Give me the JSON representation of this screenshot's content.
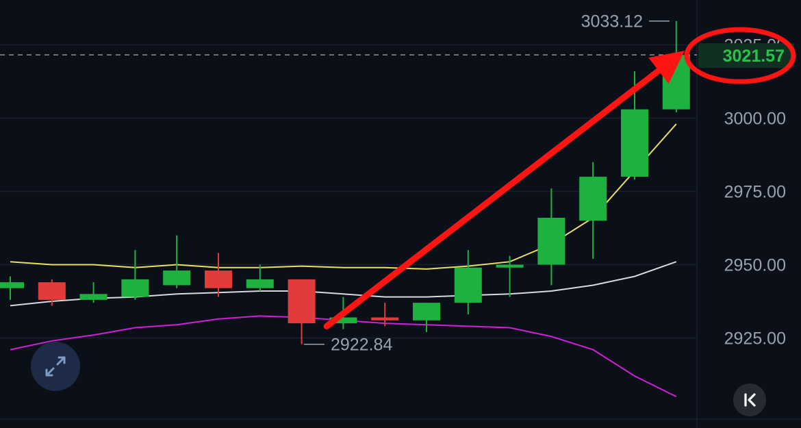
{
  "chart_data": {
    "type": "candlestick",
    "y_axis": {
      "ticks": [
        "3025.00",
        "3000.00",
        "2975.00",
        "2950.00",
        "2925.00"
      ],
      "tick_values": [
        3025,
        3000,
        2975,
        2950,
        2925
      ],
      "range": [
        2903,
        3037
      ],
      "side": "right"
    },
    "current_price": {
      "label": "3021.57",
      "value": 3021.57,
      "color": "#27c24c"
    },
    "high_annotation": {
      "label": "3033.12",
      "value": 3033.12,
      "candle_index": 16
    },
    "low_annotation": {
      "label": "2922.84",
      "value": 2922.84,
      "candle_index": 7
    },
    "candles": [
      {
        "open": 2942,
        "high": 2946,
        "low": 2938,
        "close": 2944
      },
      {
        "open": 2944,
        "high": 2945,
        "low": 2936,
        "close": 2938
      },
      {
        "open": 2938,
        "high": 2944,
        "low": 2937,
        "close": 2940
      },
      {
        "open": 2939,
        "high": 2955,
        "low": 2938,
        "close": 2945
      },
      {
        "open": 2943,
        "high": 2960,
        "low": 2942,
        "close": 2948
      },
      {
        "open": 2948,
        "high": 2954,
        "low": 2939,
        "close": 2942
      },
      {
        "open": 2942,
        "high": 2950,
        "low": 2941,
        "close": 2945
      },
      {
        "open": 2945,
        "high": 2945,
        "low": 2922.84,
        "close": 2930
      },
      {
        "open": 2930,
        "high": 2939,
        "low": 2928,
        "close": 2932
      },
      {
        "open": 2932,
        "high": 2937,
        "low": 2929,
        "close": 2931
      },
      {
        "open": 2931,
        "high": 2937,
        "low": 2927,
        "close": 2937
      },
      {
        "open": 2937,
        "high": 2955,
        "low": 2933,
        "close": 2949
      },
      {
        "open": 2949,
        "high": 2953,
        "low": 2939,
        "close": 2950
      },
      {
        "open": 2950,
        "high": 2976,
        "low": 2943,
        "close": 2966
      },
      {
        "open": 2965,
        "high": 2985,
        "low": 2952,
        "close": 2980
      },
      {
        "open": 2980,
        "high": 3016,
        "low": 2979,
        "close": 3003
      },
      {
        "open": 3003,
        "high": 3033.12,
        "low": 3002,
        "close": 3021.57
      }
    ],
    "series": [
      {
        "values": [
          2951,
          2950,
          2950,
          2949,
          2950,
          2949,
          2949,
          2949.5,
          2949,
          2949,
          2948.5,
          2949.5,
          2951,
          2957,
          2966,
          2982,
          2998
        ],
        "color": "#e8e15a"
      },
      {
        "values": [
          2936,
          2937.5,
          2938.5,
          2939,
          2940,
          2940.5,
          2941,
          2941,
          2940,
          2939,
          2939,
          2939.5,
          2940,
          2941,
          2943,
          2946,
          2951
        ],
        "color": "#d8dade"
      },
      {
        "values": [
          2921,
          2924,
          2926,
          2928.5,
          2929.5,
          2931.5,
          2932.5,
          2932,
          2931,
          2930,
          2929.5,
          2929,
          2928.5,
          2925.5,
          2921,
          2912,
          2905
        ],
        "color": "#d01fd6"
      }
    ],
    "up_color": "#1fb13f",
    "down_color": "#e23b3b",
    "arrow": {
      "from": {
        "candle_index": 7.6,
        "value": 2929
      },
      "to": {
        "candle_index": 16.2,
        "value": 3023
      },
      "color": "#ff1414"
    },
    "highlight_circle_color": "#ff1414"
  },
  "controls": {
    "expand_icon": "expand-arrows-icon",
    "collapse_icon": "chevron-collapse-icon"
  }
}
